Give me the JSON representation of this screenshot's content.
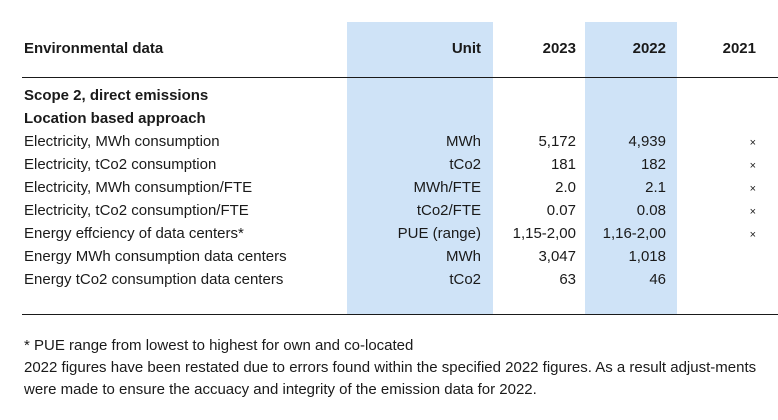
{
  "table": {
    "headers": {
      "label": "Environmental data",
      "unit": "Unit",
      "y2023": "2023",
      "y2022": "2022",
      "y2021": "2021"
    },
    "section_title": "Scope 2, direct emissions",
    "subsection_title": "Location based approach",
    "rows": [
      {
        "label": "Electricity, MWh consumption",
        "unit": "MWh",
        "y2023": "5,172",
        "y2022": "4,939",
        "y2021": "×"
      },
      {
        "label": "Electricity, tCo2 consumption",
        "unit": "tCo2",
        "y2023": "181",
        "y2022": "182",
        "y2021": "×"
      },
      {
        "label": "Electricity, MWh consumption/FTE",
        "unit": "MWh/FTE",
        "y2023": "2.0",
        "y2022": "2.1",
        "y2021": "×"
      },
      {
        "label": "Electricity, tCo2 consumption/FTE",
        "unit": "tCo2/FTE",
        "y2023": "0.07",
        "y2022": "0.08",
        "y2021": "×"
      },
      {
        "label": "Energy effciency of data centers*",
        "unit": "PUE (range)",
        "y2023": "1,15-2,00",
        "y2022": "1,16-2,00",
        "y2021": "×"
      },
      {
        "label": "Energy MWh consumption data centers",
        "unit": "MWh",
        "y2023": "3,047",
        "y2022": "1,018",
        "y2021": ""
      },
      {
        "label": "Energy tCo2 consumption data centers",
        "unit": "tCo2",
        "y2023": "63",
        "y2022": "46",
        "y2021": ""
      }
    ]
  },
  "footnotes": {
    "pue": "* PUE range from lowest to highest for own and co-located",
    "restated": "2022 figures have been restated due to errors found within the specified 2022 figures. As a result adjust-ments were made to ensure the accuacy and integrity of the emission data for 2022."
  }
}
